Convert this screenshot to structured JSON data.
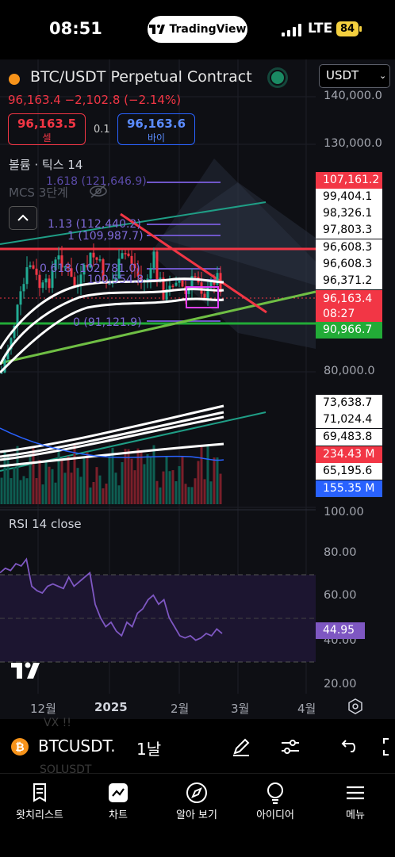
{
  "status_bar": {
    "time": "08:51",
    "app_pill": "TradingView",
    "network": "LTE",
    "battery": "84"
  },
  "header": {
    "symbol_title": "BTC/USDT Perpetual Contract",
    "currency": "USDT",
    "quote_line": "96,163.4 −2,102.8 (−2.14%)",
    "sell_price": "96,163.5",
    "sell_label": "셀",
    "spread": "0.1",
    "buy_price": "96,163.6",
    "buy_label": "바이"
  },
  "indicators": {
    "volume": "볼륨 · 틱스 14",
    "mcs": "MCS 3단계",
    "rsi": "RSI 14 close"
  },
  "fib_labels": [
    "1.618 (121,646.9)",
    "1.13 (112,440.2)",
    "1 (109,987.7)",
    "0.618 (102,781.0)",
    "100,554.8",
    "0 (91,121.9)"
  ],
  "price_axis": {
    "ticks": [
      "140,000.0",
      "130,000.0",
      "80,000.0"
    ],
    "labels": [
      {
        "text": "107,161.2",
        "style": "red"
      },
      {
        "text": "99,404.1",
        "style": "white"
      },
      {
        "text": "98,326.1",
        "style": "white"
      },
      {
        "text": "97,803.3",
        "style": "white"
      },
      {
        "text": "96,608.3",
        "style": "white"
      },
      {
        "text": "96,608.3",
        "style": "white"
      },
      {
        "text": "96,371.2",
        "style": "white"
      },
      {
        "text": "90,966.7",
        "style": "green"
      },
      {
        "text": "73,638.7",
        "style": "white"
      },
      {
        "text": "71,024.4",
        "style": "white"
      },
      {
        "text": "69,483.8",
        "style": "white"
      },
      {
        "text": "234.43 M",
        "style": "red"
      },
      {
        "text": "65,195.6",
        "style": "white"
      },
      {
        "text": "155.35 M",
        "style": "blue"
      }
    ],
    "current_price": "96,163.4",
    "countdown": "08:27"
  },
  "rsi_axis": {
    "ticks": [
      "100.00",
      "80.00",
      "60.00",
      "40.00",
      "20.00"
    ],
    "current": "44.95"
  },
  "time_axis": [
    "12월",
    "2025",
    "2월",
    "3월",
    "4월"
  ],
  "toolbar": {
    "ghost_top": "VX !!",
    "ghost_bottom": "SOLUSDT",
    "symbol": "BTCUSDT.",
    "interval": "1날"
  },
  "nav": {
    "items": [
      {
        "label": "왓치리스트",
        "icon": "watchlist-icon"
      },
      {
        "label": "차트",
        "icon": "chart-icon"
      },
      {
        "label": "알아 보기",
        "icon": "compass-icon"
      },
      {
        "label": "아이디어",
        "icon": "lightbulb-icon"
      },
      {
        "label": "메뉴",
        "icon": "menu-icon"
      }
    ]
  },
  "colors": {
    "up": "#22ab94",
    "down": "#f23645",
    "accent_blue": "#2962ff",
    "rsi": "#7e57c2",
    "battery": "#f4d03f"
  },
  "chart_data": {
    "type": "line",
    "rsi_series": {
      "name": "RSI 14 close",
      "values": [
        72,
        74,
        73,
        76,
        75,
        78,
        66,
        64,
        63,
        66,
        67,
        66,
        65,
        70,
        66,
        68,
        70,
        72,
        58,
        52,
        48,
        50,
        46,
        44,
        50,
        48,
        54,
        56,
        60,
        62,
        58,
        60,
        52,
        48,
        44,
        43,
        44,
        42,
        43,
        45,
        44,
        47,
        45
      ],
      "ylim": [
        20,
        100
      ]
    },
    "price_ylim": [
      60000,
      145000
    ]
  }
}
